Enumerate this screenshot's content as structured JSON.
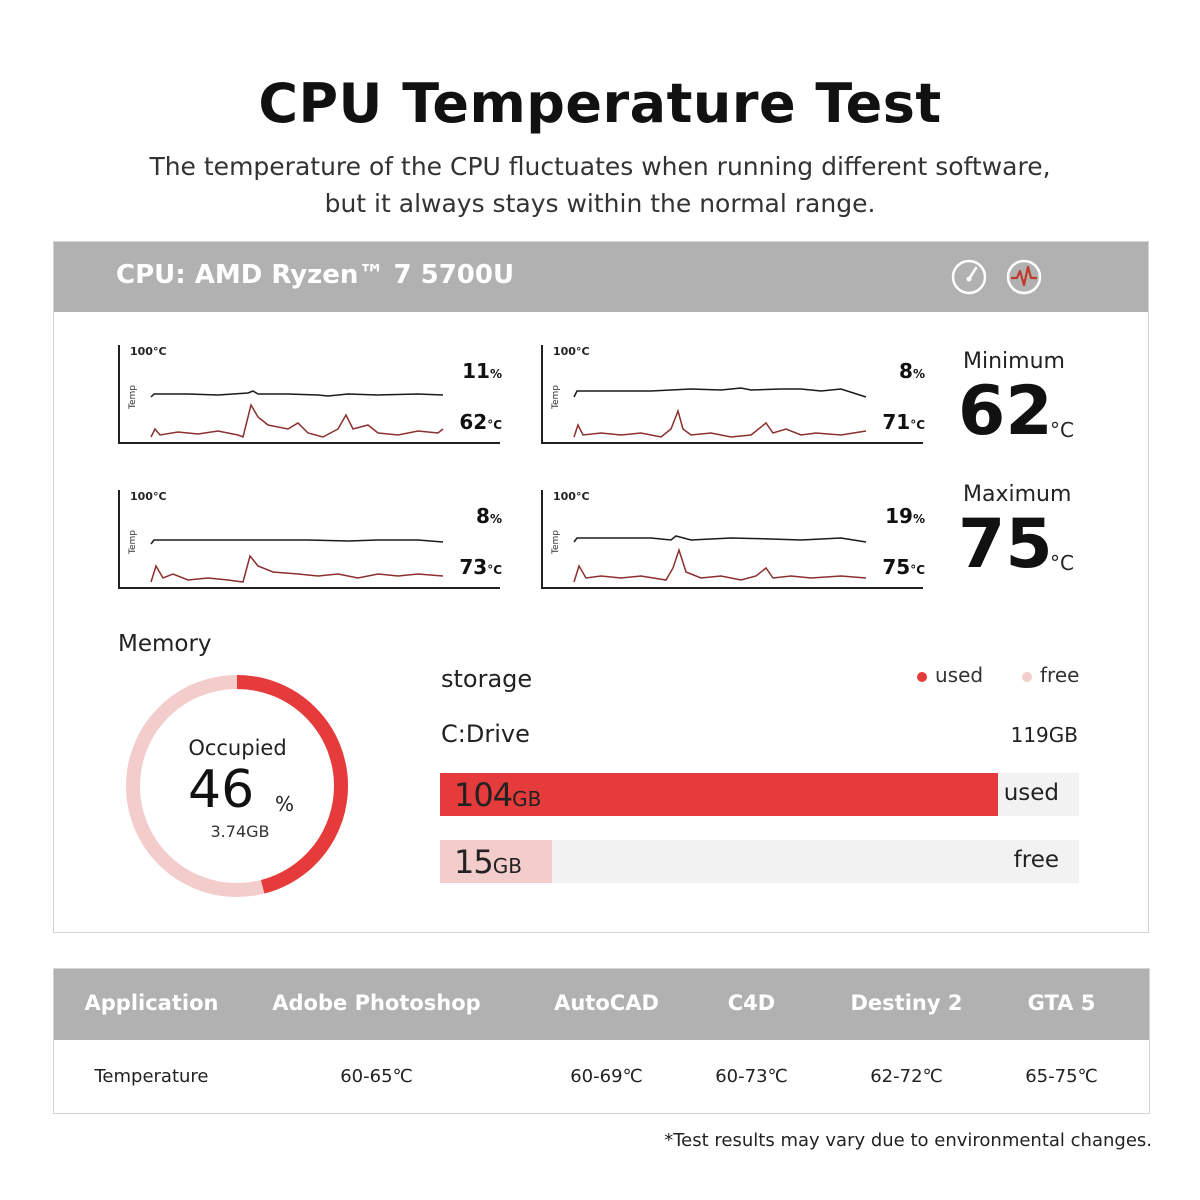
{
  "title": "CPU Temperature Test",
  "subtitle_lines": [
    "The temperature of the CPU fluctuates when running different software,",
    "but it always stays within the normal range."
  ],
  "panel": {
    "cpu_name": "CPU: AMD Ryzen™ 7 5700U",
    "icons": [
      "speedometer-icon",
      "heartbeat-icon"
    ]
  },
  "colors": {
    "header_gray": "#b1b1b1",
    "usage_line": "#1a1a1a",
    "temp_line": "#8c2f2f",
    "accent_red": "#e53b3b",
    "light_pink": "#f3cccc"
  },
  "charts": [
    {
      "top_label": "100°C",
      "side_label": "Temp",
      "usage_num": "11",
      "usage_unit": "%",
      "temp_num": "62",
      "temp_unit": "°C"
    },
    {
      "top_label": "100°C",
      "side_label": "Temp",
      "usage_num": "8",
      "usage_unit": "%",
      "temp_num": "71",
      "temp_unit": "°C"
    },
    {
      "top_label": "100°C",
      "side_label": "Temp",
      "usage_num": "8",
      "usage_unit": "%",
      "temp_num": "73",
      "temp_unit": "°C"
    },
    {
      "top_label": "100°C",
      "side_label": "Temp",
      "usage_num": "19",
      "usage_unit": "%",
      "temp_num": "75",
      "temp_unit": "°C"
    }
  ],
  "stats": {
    "min_label": "Minimum",
    "min_value": "62",
    "min_unit": "°C",
    "max_label": "Maximum",
    "max_value": "75",
    "max_unit": "°C"
  },
  "memory": {
    "label": "Memory",
    "occupied_label": "Occupied",
    "occupied_value": "46",
    "occupied_unit": "%",
    "occupied_percent": 46,
    "occupied_size": "3.74GB"
  },
  "storage": {
    "label": "storage",
    "legend_used": "used",
    "legend_free": "free",
    "drive_label": "C:Drive",
    "drive_total": "119GB",
    "used_num": "104",
    "used_unit": "GB",
    "used_fraction": 0.874,
    "used_tag": "used",
    "free_num": "15",
    "free_unit": "GB",
    "free_fraction": 0.126,
    "free_tag": "free"
  },
  "table": {
    "headers": [
      "Application",
      "Adobe Photoshop",
      "AutoCAD",
      "C4D",
      "Destiny 2",
      "GTA 5"
    ],
    "row": [
      "Temperature",
      "60-65℃",
      "60-69℃",
      "60-73℃",
      "62-72℃",
      "65-75℃"
    ]
  },
  "footnote": "*Test results may vary due to environmental changes."
}
